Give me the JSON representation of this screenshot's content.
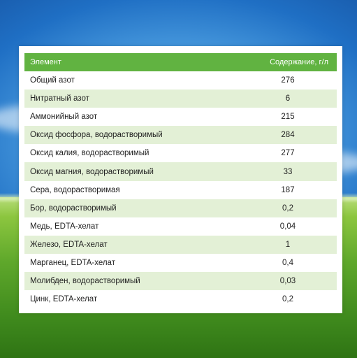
{
  "table": {
    "headers": {
      "element": "Элемент",
      "content": "Содержание, г/л"
    },
    "rows": [
      {
        "name": "Общий азот",
        "value": "276"
      },
      {
        "name": "Нитратный азот",
        "value": "6"
      },
      {
        "name": "Аммонийный азот",
        "value": "215"
      },
      {
        "name": "Оксид фосфора, водорастворимый",
        "value": "284"
      },
      {
        "name": "Оксид калия, водорастворимый",
        "value": "277"
      },
      {
        "name": "Оксид магния, водорастворимый",
        "value": "33"
      },
      {
        "name": "Сера, водорастворимая",
        "value": "187"
      },
      {
        "name": "Бор, водорастворимый",
        "value": "0,2"
      },
      {
        "name": "Медь, EDTA-хелат",
        "value": "0,04"
      },
      {
        "name": "Железо, EDTA-хелат",
        "value": "1"
      },
      {
        "name": "Марганец, EDTA-хелат",
        "value": "0,4"
      },
      {
        "name": "Молибден, водорастворимый",
        "value": "0,03"
      },
      {
        "name": "Цинк, EDTA-хелат",
        "value": "0,2"
      }
    ]
  },
  "colors": {
    "header_bg": "#61b341",
    "stripe_bg": "#e3f0d6",
    "sky": "#1f6fc4",
    "grass": "#5fa82b"
  }
}
